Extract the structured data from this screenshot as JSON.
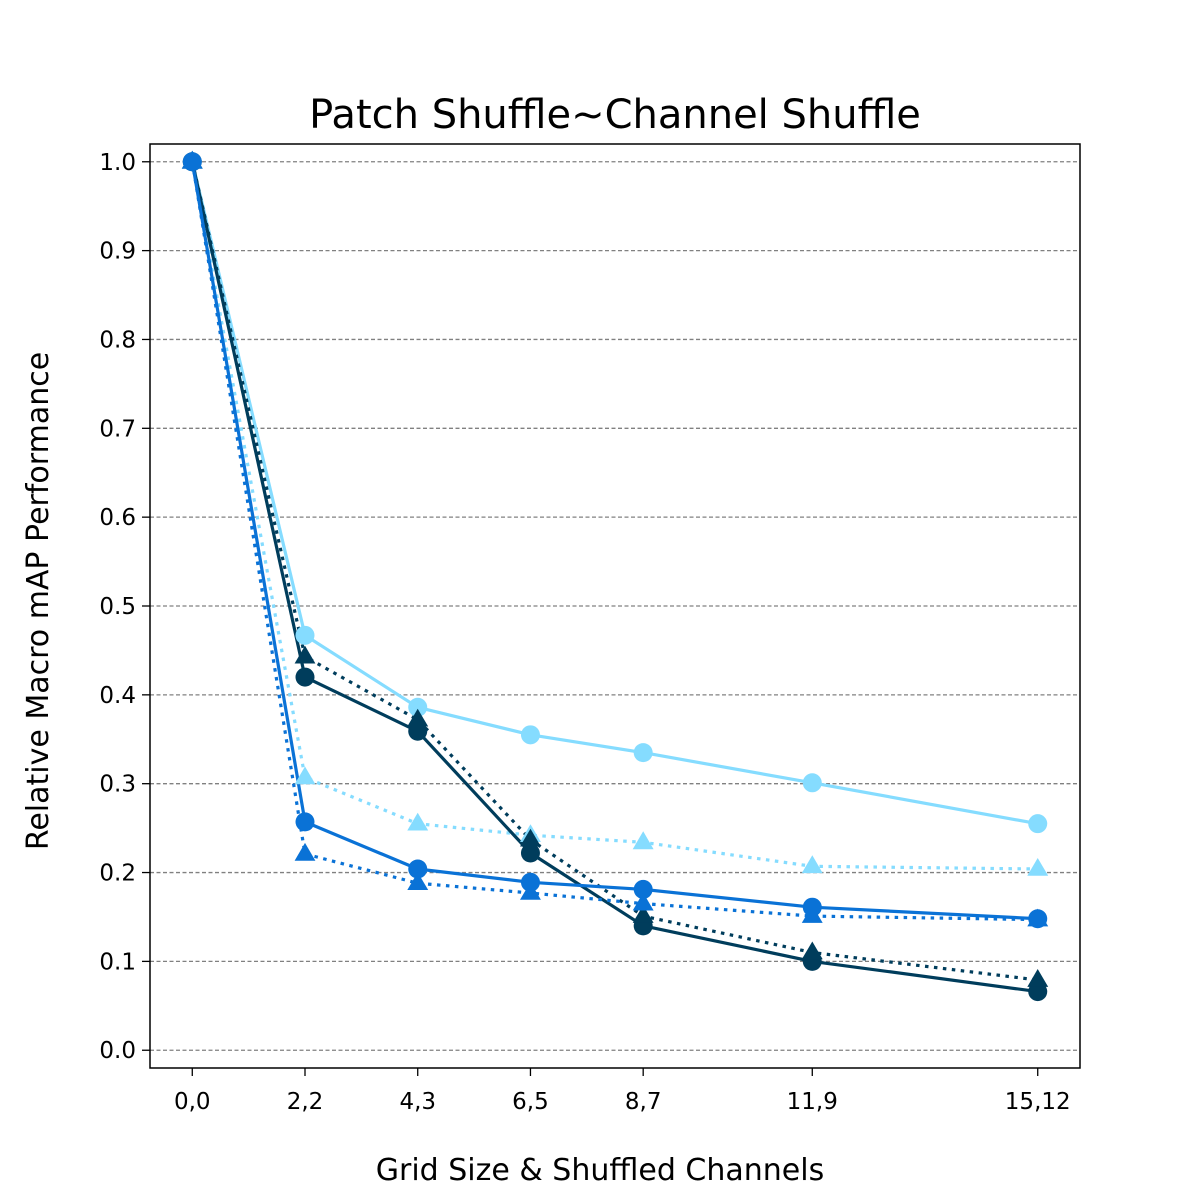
{
  "chart_data": {
    "type": "line",
    "title": "Patch Shuffle~Channel Shuffle",
    "xlabel": "Grid Size & Shuffled Channels",
    "ylabel": "Relative Macro mAP Performance",
    "categories": [
      "0,0",
      "2,2",
      "4,3",
      "6,5",
      "8,7",
      "11,9",
      "15,12"
    ],
    "x": [
      0,
      2,
      4,
      6,
      8,
      11,
      15
    ],
    "ylim": [
      -0.02,
      1.02
    ],
    "yticks": [
      "0.0",
      "0.1",
      "0.2",
      "0.3",
      "0.4",
      "0.5",
      "0.6",
      "0.7",
      "0.8",
      "0.9",
      "1.0"
    ],
    "grid": "horizontal dashed",
    "series": [
      {
        "color": "#85dcff",
        "style": "solid",
        "marker": "circle",
        "values": [
          1.0,
          0.467,
          0.386,
          0.355,
          0.335,
          0.301,
          0.255
        ]
      },
      {
        "color": "#85dcff",
        "style": "dotted",
        "marker": "triangle",
        "values": [
          1.0,
          0.307,
          0.255,
          0.242,
          0.234,
          0.207,
          0.204
        ]
      },
      {
        "color": "#003d5c",
        "style": "solid",
        "marker": "circle",
        "values": [
          1.0,
          0.42,
          0.359,
          0.222,
          0.14,
          0.1,
          0.066
        ]
      },
      {
        "color": "#003d5c",
        "style": "dotted",
        "marker": "triangle",
        "values": [
          1.0,
          0.443,
          0.372,
          0.237,
          0.151,
          0.11,
          0.079
        ]
      },
      {
        "color": "#0a72d6",
        "style": "solid",
        "marker": "circle",
        "values": [
          1.0,
          0.257,
          0.204,
          0.189,
          0.181,
          0.161,
          0.148
        ]
      },
      {
        "color": "#0a72d6",
        "style": "dotted",
        "marker": "triangle",
        "values": [
          1.0,
          0.221,
          0.188,
          0.177,
          0.165,
          0.151,
          0.147
        ]
      }
    ]
  }
}
